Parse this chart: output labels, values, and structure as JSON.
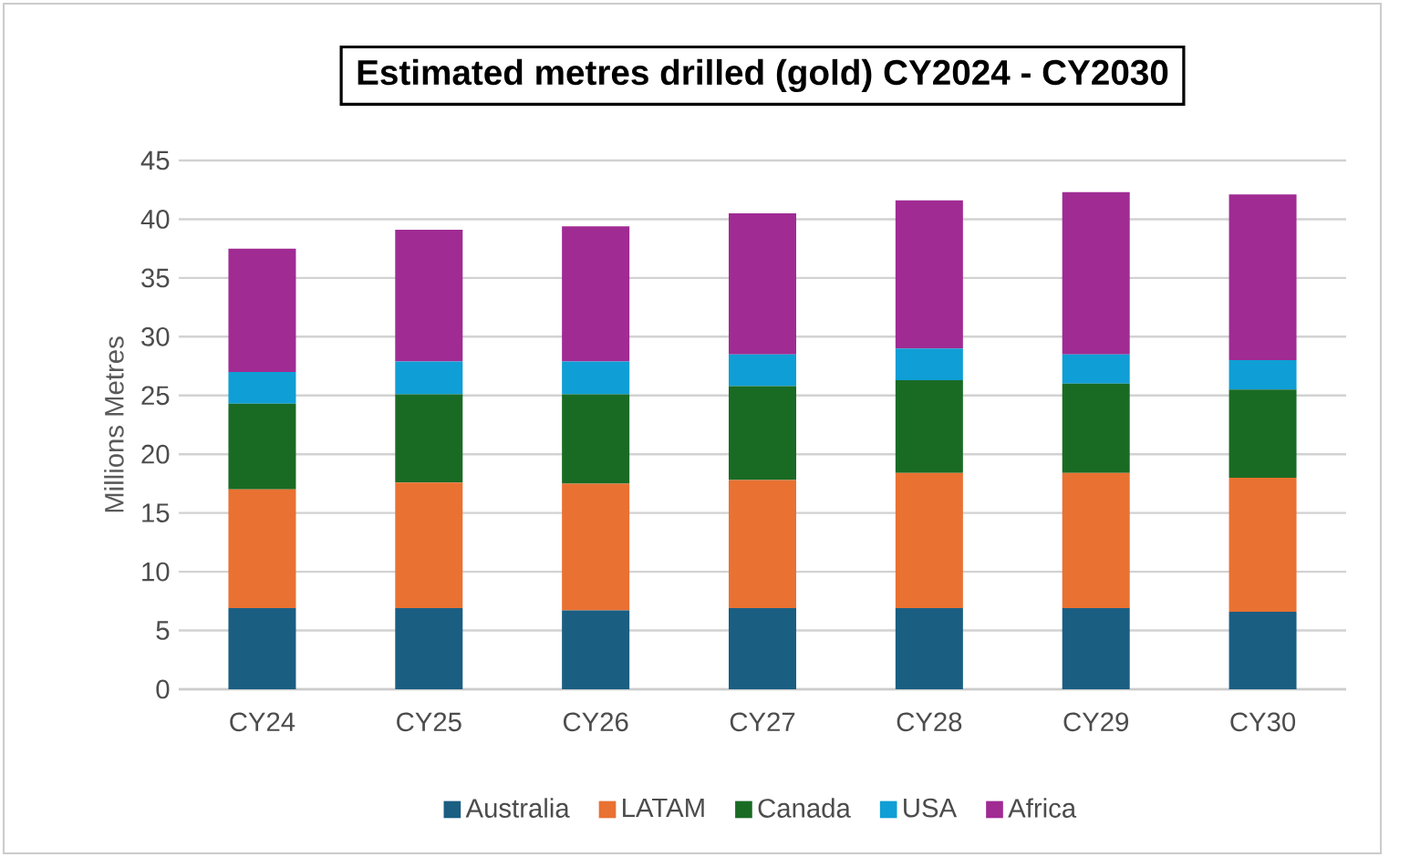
{
  "chart_data": {
    "type": "bar",
    "title": "Estimated metres drilled (gold) CY2024 - CY2030",
    "ylabel": "Millions Metres",
    "categories": [
      "CY24",
      "CY25",
      "CY26",
      "CY27",
      "CY28",
      "CY29",
      "CY30"
    ],
    "stacked": true,
    "grid": "y",
    "legend": "bottom",
    "ylim": [
      0,
      45
    ],
    "yticks": [
      0,
      5,
      10,
      15,
      20,
      25,
      30,
      35,
      40,
      45
    ],
    "series": [
      {
        "name": "Australia",
        "color": "#1a5e82",
        "values": [
          6.9,
          6.9,
          6.7,
          6.9,
          6.9,
          6.9,
          6.6
        ]
      },
      {
        "name": "LATAM",
        "color": "#e97132",
        "values": [
          10.1,
          10.7,
          10.8,
          10.9,
          11.5,
          11.5,
          11.4
        ]
      },
      {
        "name": "Canada",
        "color": "#196b24",
        "values": [
          7.3,
          7.5,
          7.6,
          8.0,
          7.9,
          7.6,
          7.5
        ]
      },
      {
        "name": "USA",
        "color": "#0f9ed5",
        "values": [
          2.7,
          2.8,
          2.8,
          2.7,
          2.7,
          2.5,
          2.5
        ]
      },
      {
        "name": "Africa",
        "color": "#a02b93",
        "values": [
          10.5,
          11.2,
          11.5,
          12.0,
          12.6,
          13.8,
          14.1
        ]
      }
    ]
  }
}
